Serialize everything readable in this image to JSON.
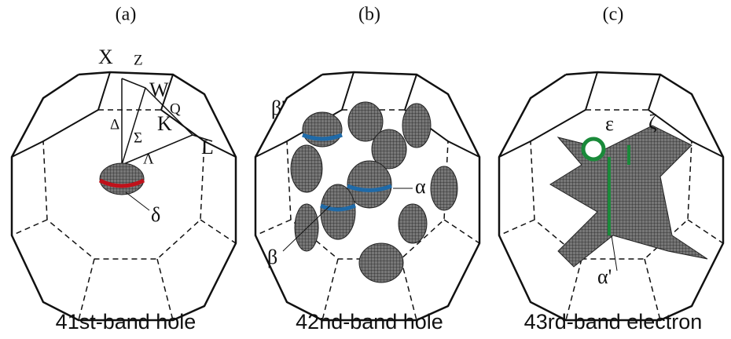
{
  "panels": [
    {
      "tag": "(a)",
      "caption": "41st-band hole",
      "labels": [
        "X",
        "Z",
        "W",
        "Q",
        "Δ",
        "K",
        "Σ",
        "L",
        "Λ",
        "δ"
      ]
    },
    {
      "tag": "(b)",
      "caption": "42nd-band hole",
      "labels": [
        "β'",
        "α",
        "β"
      ]
    },
    {
      "tag": "(c)",
      "caption": "43rd-band electron",
      "labels": [
        "ε",
        "ζ",
        "α'"
      ]
    }
  ]
}
